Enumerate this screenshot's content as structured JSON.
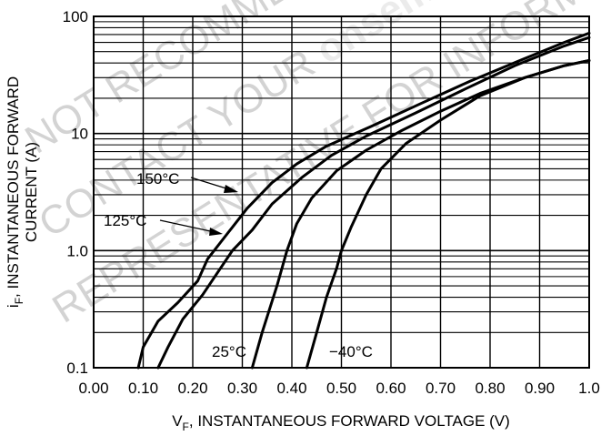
{
  "chart_data": {
    "type": "line",
    "title": "",
    "xlabel": {
      "pre": "V",
      "sub": "F",
      "post": ", INSTANTANEOUS FORWARD VOLTAGE (V)"
    },
    "ylabel_line1": {
      "pre": "i",
      "sub": "F",
      "post": ", INSTANTANEOUS FORWARD"
    },
    "ylabel_line2": "CURRENT (A)",
    "xlim": [
      0.0,
      1.0
    ],
    "ylim": [
      0.1,
      100
    ],
    "yscale": "log",
    "grid": true,
    "xticks": [
      "0.00",
      "0.10",
      "0.20",
      "0.30",
      "0.40",
      "0.50",
      "0.60",
      "0.70",
      "0.80",
      "0.90",
      "1.0"
    ],
    "yticks": [
      "0.1",
      "1.0",
      "10",
      "100"
    ],
    "series": [
      {
        "name": "150°C",
        "points": [
          [
            0.09,
            0.1
          ],
          [
            0.1,
            0.15
          ],
          [
            0.13,
            0.25
          ],
          [
            0.17,
            0.36
          ],
          [
            0.21,
            0.55
          ],
          [
            0.23,
            0.85
          ],
          [
            0.27,
            1.4
          ],
          [
            0.31,
            2.3
          ],
          [
            0.36,
            3.8
          ],
          [
            0.41,
            5.5
          ],
          [
            0.47,
            7.8
          ],
          [
            0.56,
            11.5
          ],
          [
            0.66,
            18
          ],
          [
            0.76,
            28
          ],
          [
            0.86,
            42
          ],
          [
            0.95,
            60
          ],
          [
            1.0,
            72
          ]
        ]
      },
      {
        "name": "125°C",
        "points": [
          [
            0.13,
            0.1
          ],
          [
            0.15,
            0.15
          ],
          [
            0.18,
            0.26
          ],
          [
            0.22,
            0.42
          ],
          [
            0.25,
            0.65
          ],
          [
            0.28,
            1.0
          ],
          [
            0.32,
            1.5
          ],
          [
            0.36,
            2.5
          ],
          [
            0.42,
            4.2
          ],
          [
            0.48,
            6.5
          ],
          [
            0.55,
            9.5
          ],
          [
            0.65,
            15
          ],
          [
            0.75,
            24
          ],
          [
            0.85,
            38
          ],
          [
            0.95,
            56
          ],
          [
            1.0,
            66
          ]
        ]
      },
      {
        "name": "25°C",
        "points": [
          [
            0.32,
            0.1
          ],
          [
            0.34,
            0.2
          ],
          [
            0.37,
            0.5
          ],
          [
            0.39,
            1.0
          ],
          [
            0.41,
            1.7
          ],
          [
            0.44,
            2.8
          ],
          [
            0.49,
            4.8
          ],
          [
            0.55,
            7.2
          ],
          [
            0.62,
            10.5
          ],
          [
            0.7,
            15.5
          ],
          [
            0.78,
            22
          ],
          [
            0.87,
            30
          ],
          [
            0.95,
            38
          ],
          [
            1.0,
            42
          ]
        ]
      },
      {
        "name": "−40°C",
        "points": [
          [
            0.43,
            0.1
          ],
          [
            0.45,
            0.2
          ],
          [
            0.47,
            0.4
          ],
          [
            0.49,
            0.7
          ],
          [
            0.5,
            1.0
          ],
          [
            0.52,
            1.6
          ],
          [
            0.55,
            3.0
          ],
          [
            0.58,
            5.0
          ],
          [
            0.63,
            8.2
          ],
          [
            0.7,
            13
          ],
          [
            0.78,
            21
          ],
          [
            0.87,
            30
          ],
          [
            0.95,
            38
          ],
          [
            1.0,
            42
          ]
        ]
      }
    ],
    "annotations": [
      "150°C",
      "125°C",
      "25°C",
      "−40°C"
    ]
  },
  "watermark": {
    "line1": "NOT RECOMMENDED FOR NEW DESIGN",
    "line2a": "CONTACT YOUR ",
    "line2b": "onsemi",
    "line3": "REPRESENTATIVE FOR INFORMATION"
  }
}
